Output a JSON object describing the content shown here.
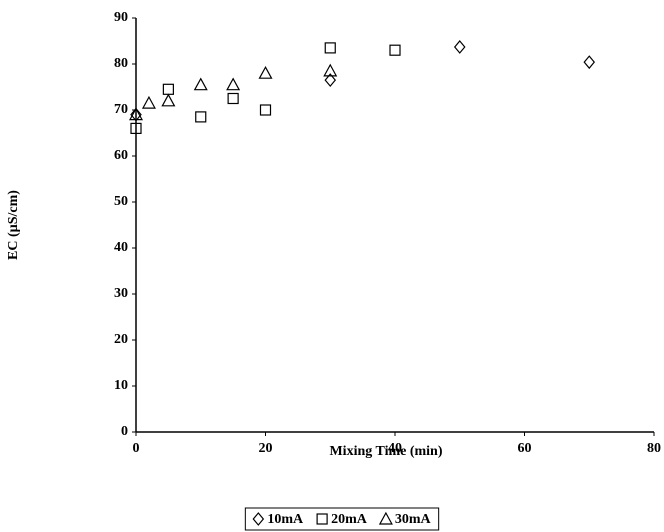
{
  "chart_data": {
    "type": "scatter",
    "xlabel": "Mixing Time (min)",
    "ylabel": "EC (µS/cm)",
    "xlim": [
      0,
      80
    ],
    "xticks": [
      0,
      20,
      40,
      60,
      80
    ],
    "ylim": [
      0,
      90
    ],
    "yticks": [
      0,
      10,
      20,
      30,
      40,
      50,
      60,
      70,
      80,
      90
    ],
    "legend": "bottom",
    "series": [
      {
        "name": "10mA",
        "marker": "diamond",
        "color": "#000000",
        "x": [
          0,
          30,
          50,
          70
        ],
        "values": [
          69,
          76.5,
          83.7,
          80.4
        ]
      },
      {
        "name": "20mA",
        "marker": "square",
        "color": "#000000",
        "x": [
          0,
          5,
          10,
          15,
          20,
          30,
          40
        ],
        "values": [
          66,
          74.5,
          68.5,
          72.5,
          70,
          83.5,
          83
        ]
      },
      {
        "name": "30mA",
        "marker": "triangle",
        "color": "#000000",
        "x": [
          0,
          2,
          5,
          10,
          15,
          20,
          30
        ],
        "values": [
          69,
          71.5,
          72,
          75.5,
          75.5,
          78,
          78.5
        ]
      }
    ]
  }
}
